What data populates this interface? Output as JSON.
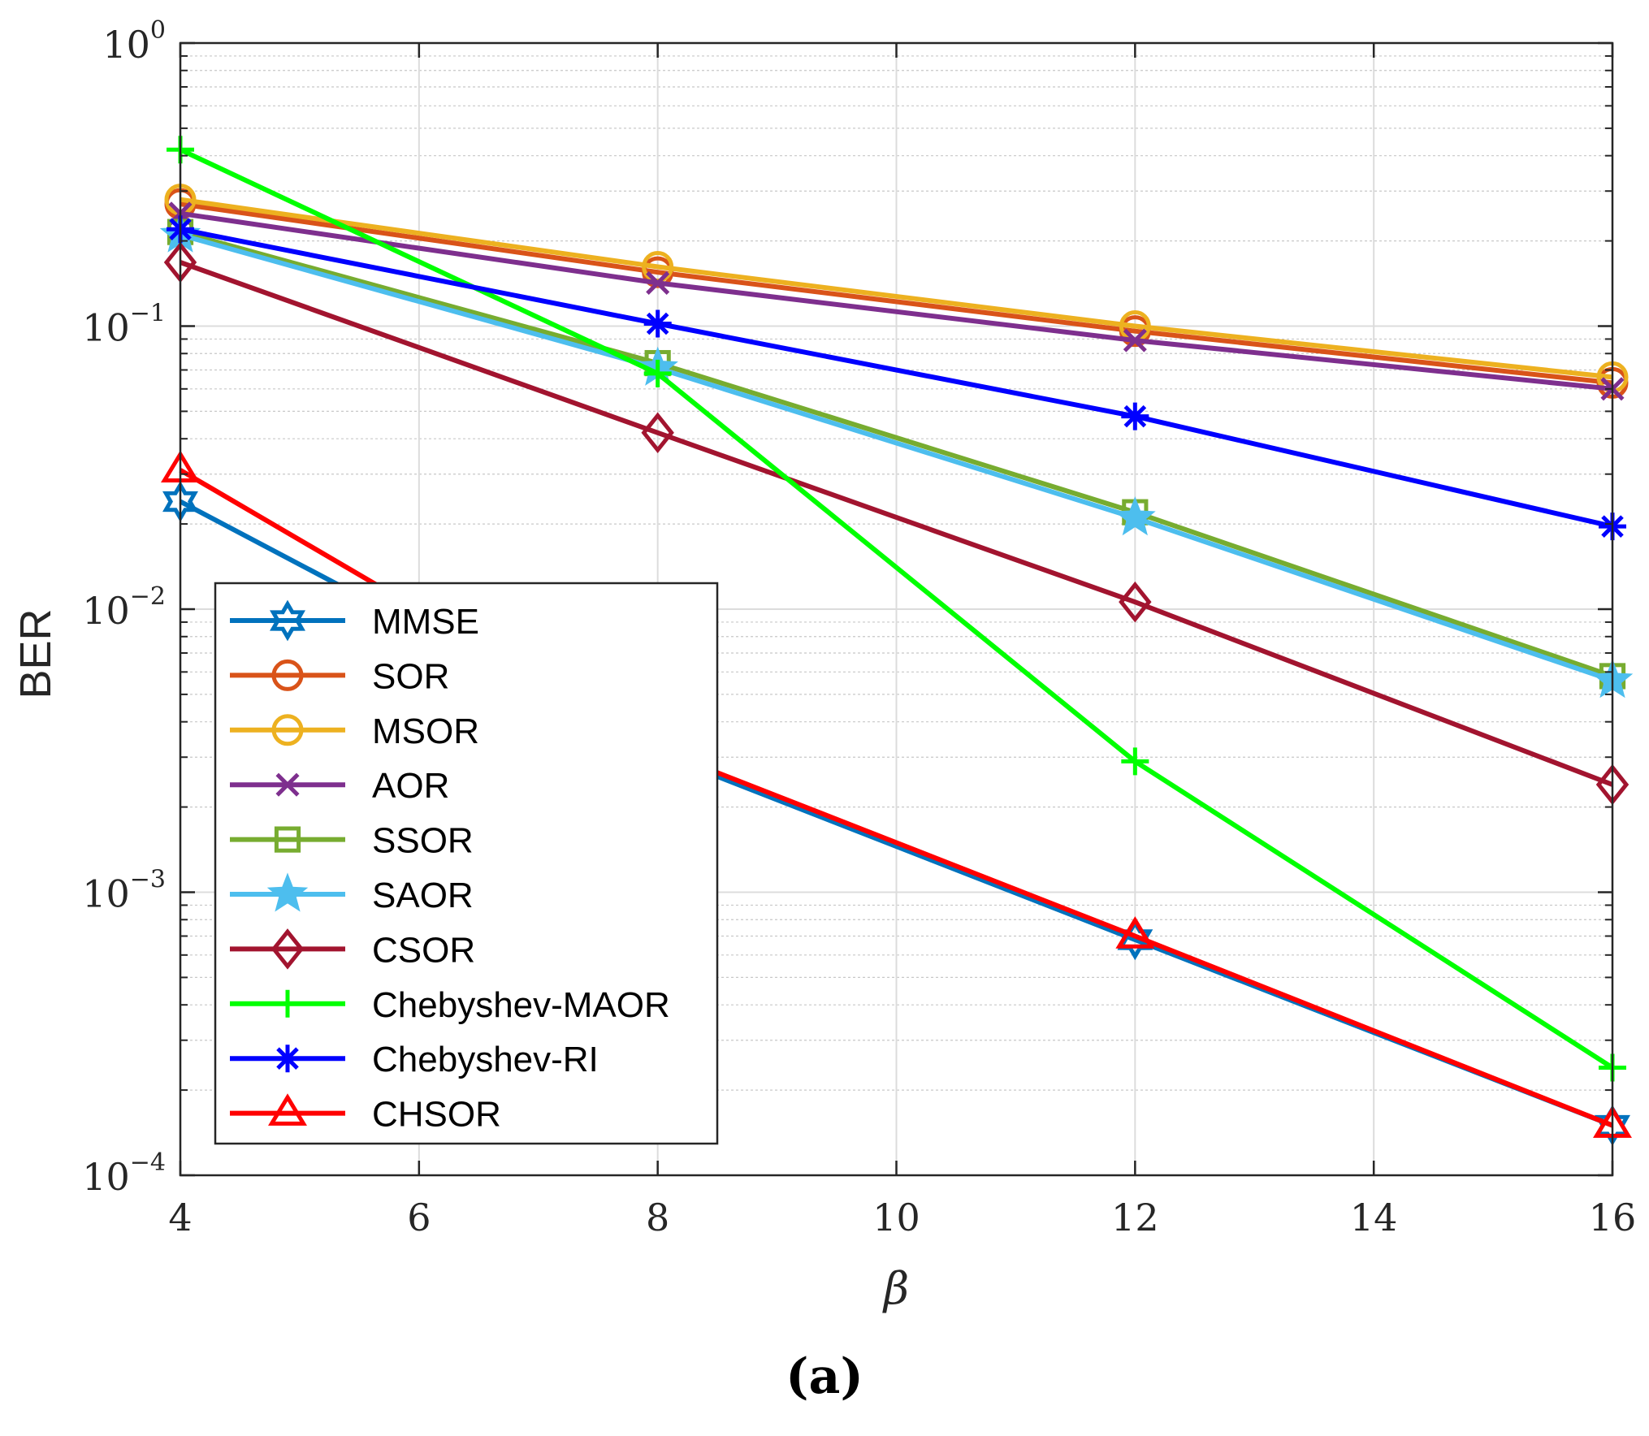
{
  "caption": "(a)",
  "chart_data": {
    "type": "line",
    "xlabel": "β",
    "ylabel": "BER",
    "yscale": "log",
    "xlim": [
      4,
      16
    ],
    "ylim": [
      0.0001,
      1
    ],
    "grid": true,
    "legend_position": "bottom-left",
    "x_ticks": [
      4,
      6,
      8,
      10,
      12,
      14,
      16
    ],
    "y_ticks": [
      {
        "value": 0.0001,
        "base": "10",
        "exp": "−4"
      },
      {
        "value": 0.001,
        "base": "10",
        "exp": "−3"
      },
      {
        "value": 0.01,
        "base": "10",
        "exp": "−2"
      },
      {
        "value": 0.1,
        "base": "10",
        "exp": "−1"
      },
      {
        "value": 1,
        "base": "10",
        "exp": "0"
      }
    ],
    "x": [
      4,
      8,
      12,
      16
    ],
    "series": [
      {
        "name": "MMSE",
        "color": "#0072BD",
        "marker": "hexagram",
        "values": [
          0.024,
          0.0031,
          0.00068,
          0.00015
        ]
      },
      {
        "name": "SOR",
        "color": "#D95319",
        "marker": "circle",
        "values": [
          0.27,
          0.155,
          0.096,
          0.063
        ]
      },
      {
        "name": "MSOR",
        "color": "#EDB120",
        "marker": "circle",
        "values": [
          0.28,
          0.162,
          0.1,
          0.066
        ]
      },
      {
        "name": "AOR",
        "color": "#7E2F8E",
        "marker": "x",
        "values": [
          0.25,
          0.142,
          0.089,
          0.06
        ]
      },
      {
        "name": "SSOR",
        "color": "#77AC30",
        "marker": "square",
        "values": [
          0.215,
          0.074,
          0.022,
          0.0058
        ]
      },
      {
        "name": "SAOR",
        "color": "#4DBEEE",
        "marker": "pentagram",
        "values": [
          0.21,
          0.071,
          0.021,
          0.0056
        ]
      },
      {
        "name": "CSOR",
        "color": "#A2142F",
        "marker": "diamond",
        "values": [
          0.168,
          0.042,
          0.0106,
          0.0024
        ]
      },
      {
        "name": "Chebyshev-MAOR",
        "color": "#00FF00",
        "marker": "plus",
        "values": [
          0.42,
          0.068,
          0.0029,
          0.00024
        ]
      },
      {
        "name": "Chebyshev-RI",
        "color": "#0000FF",
        "marker": "asterisk",
        "values": [
          0.22,
          0.102,
          0.048,
          0.0196
        ]
      },
      {
        "name": "CHSOR",
        "color": "#FF0000",
        "marker": "triangle",
        "values": [
          0.031,
          0.0032,
          0.0007,
          0.00015
        ]
      }
    ]
  }
}
